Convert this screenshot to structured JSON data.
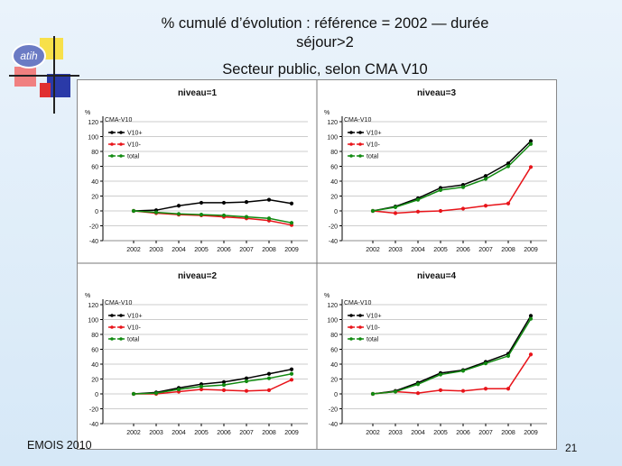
{
  "slide": {
    "title": "% cumulé d’évolution : référence = 2002 — durée séjour>2",
    "subtitle": "Secteur public, selon CMA V10",
    "footer_left": "EMOIS 2010",
    "footer_right": "21",
    "logo_text": "atih"
  },
  "chart_data": [
    {
      "type": "line",
      "title": "niveau=1",
      "ylabel": "%",
      "categories": [
        "2002",
        "2003",
        "2004",
        "2005",
        "2006",
        "2007",
        "2008",
        "2009"
      ],
      "ylim": [
        -40,
        120
      ],
      "yticks": [
        -40,
        -20,
        0,
        20,
        40,
        60,
        80,
        100,
        120
      ],
      "legend_title": "CMA-V10",
      "series": [
        {
          "name": "V10+",
          "color": "#000000",
          "values": [
            0,
            1,
            7,
            11,
            11,
            12,
            15,
            10
          ]
        },
        {
          "name": "V10-",
          "color": "#e8141a",
          "values": [
            0,
            -3,
            -5,
            -6,
            -8,
            -10,
            -13,
            -19
          ]
        },
        {
          "name": "total",
          "color": "#118a11",
          "values": [
            0,
            -2,
            -4,
            -5,
            -6,
            -8,
            -10,
            -16
          ]
        }
      ]
    },
    {
      "type": "line",
      "title": "niveau=3",
      "ylabel": "%",
      "categories": [
        "2002",
        "2003",
        "2004",
        "2005",
        "2006",
        "2007",
        "2008",
        "2009"
      ],
      "ylim": [
        -40,
        120
      ],
      "yticks": [
        -40,
        -20,
        0,
        20,
        40,
        60,
        80,
        100,
        120
      ],
      "legend_title": "CMA-V10",
      "series": [
        {
          "name": "V10+",
          "color": "#000000",
          "values": [
            0,
            6,
            17,
            31,
            35,
            47,
            64,
            94
          ]
        },
        {
          "name": "V10-",
          "color": "#e8141a",
          "values": [
            0,
            -3,
            -1,
            0,
            3,
            7,
            10,
            59
          ]
        },
        {
          "name": "total",
          "color": "#118a11",
          "values": [
            0,
            5,
            15,
            28,
            32,
            43,
            60,
            90
          ]
        }
      ]
    },
    {
      "type": "line",
      "title": "niveau=2",
      "ylabel": "%",
      "categories": [
        "2002",
        "2003",
        "2004",
        "2005",
        "2006",
        "2007",
        "2008",
        "2009"
      ],
      "ylim": [
        -40,
        120
      ],
      "yticks": [
        -40,
        -20,
        0,
        20,
        40,
        60,
        80,
        100,
        120
      ],
      "legend_title": "CMA-V10",
      "series": [
        {
          "name": "V10+",
          "color": "#000000",
          "values": [
            0,
            2,
            8,
            13,
            16,
            21,
            27,
            33
          ]
        },
        {
          "name": "V10-",
          "color": "#e8141a",
          "values": [
            0,
            0,
            3,
            6,
            5,
            4,
            5,
            19
          ]
        },
        {
          "name": "total",
          "color": "#118a11",
          "values": [
            0,
            1,
            6,
            10,
            12,
            17,
            21,
            27
          ]
        }
      ]
    },
    {
      "type": "line",
      "title": "niveau=4",
      "ylabel": "%",
      "categories": [
        "2002",
        "2003",
        "2004",
        "2005",
        "2006",
        "2007",
        "2008",
        "2009"
      ],
      "ylim": [
        -40,
        120
      ],
      "yticks": [
        -40,
        -20,
        0,
        20,
        40,
        60,
        80,
        100,
        120
      ],
      "legend_title": "CMA-V10",
      "series": [
        {
          "name": "V10+",
          "color": "#000000",
          "values": [
            0,
            4,
            15,
            28,
            32,
            43,
            54,
            105
          ]
        },
        {
          "name": "V10-",
          "color": "#e8141a",
          "values": [
            0,
            3,
            1,
            5,
            4,
            7,
            7,
            53
          ]
        },
        {
          "name": "total",
          "color": "#118a11",
          "values": [
            0,
            3,
            13,
            26,
            31,
            41,
            51,
            101
          ]
        }
      ]
    }
  ]
}
